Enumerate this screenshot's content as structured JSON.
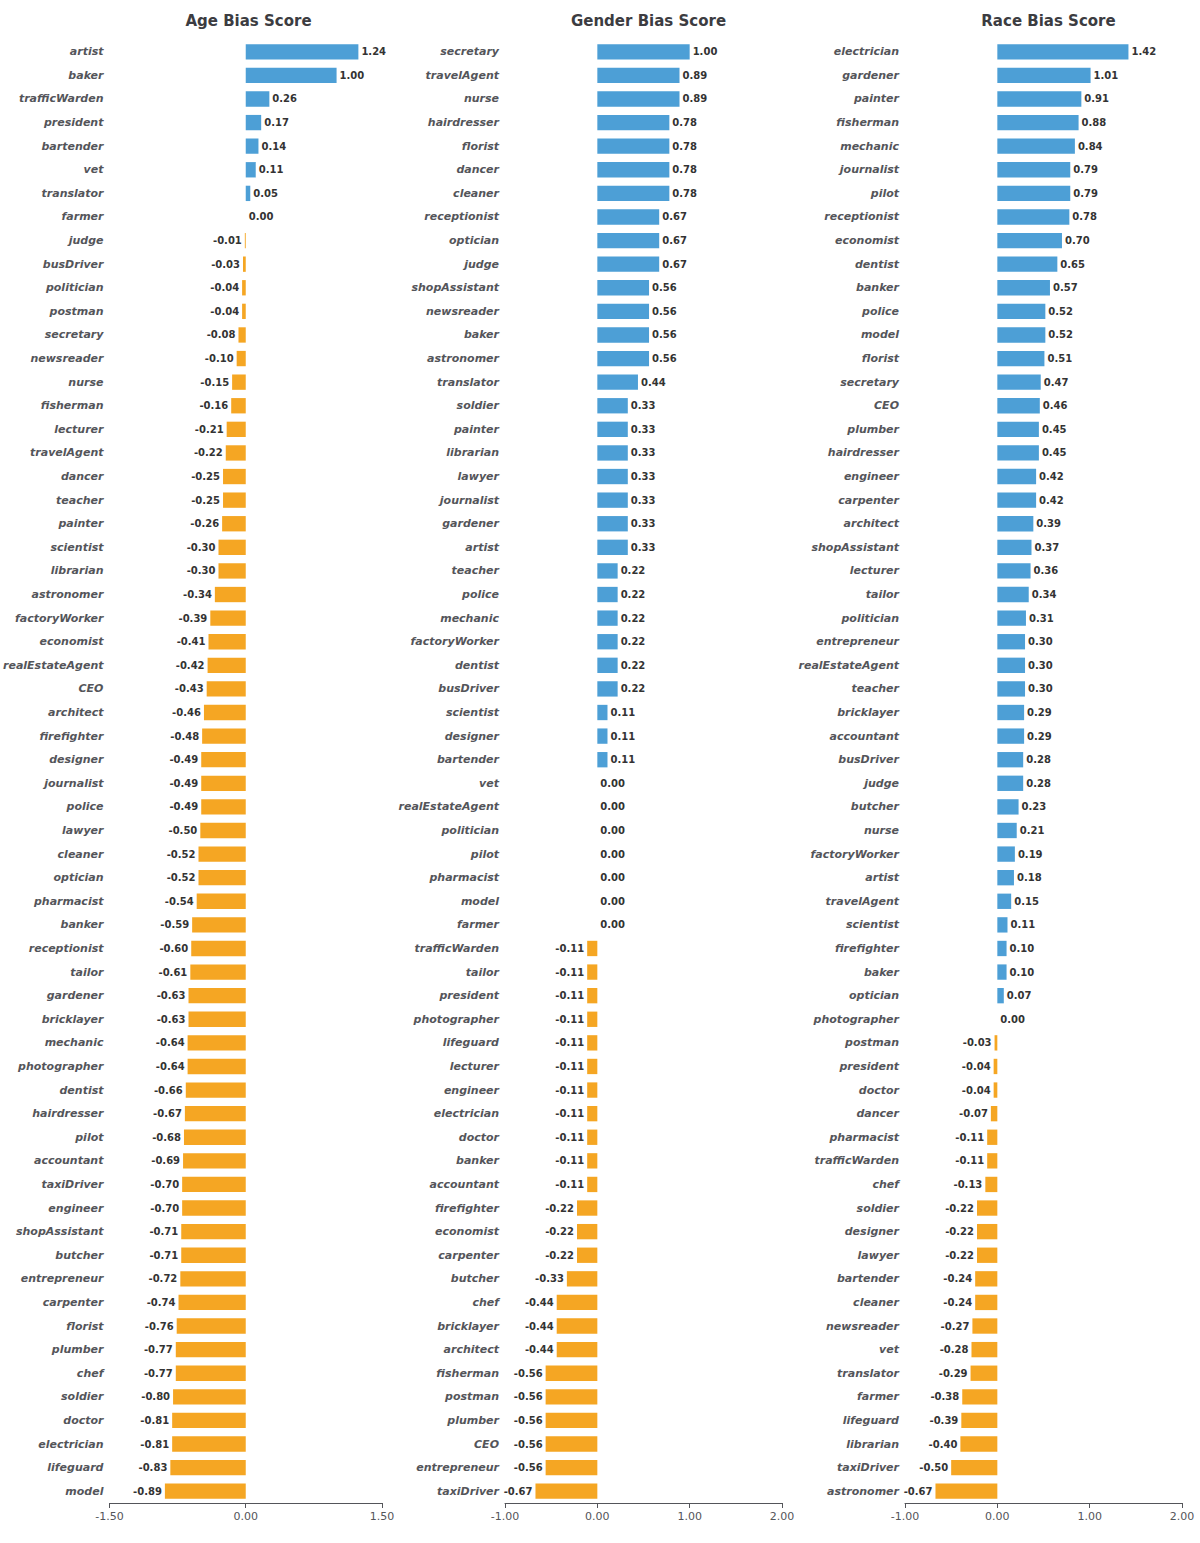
{
  "chart_data": [
    {
      "type": "bar",
      "orientation": "horizontal",
      "title": "Age Bias Score",
      "grid": false,
      "data_labels": true,
      "categories": [
        "artist",
        "baker",
        "trafficWarden",
        "president",
        "bartender",
        "vet",
        "translator",
        "farmer",
        "judge",
        "busDriver",
        "politician",
        "postman",
        "secretary",
        "newsreader",
        "nurse",
        "fisherman",
        "lecturer",
        "travelAgent",
        "dancer",
        "teacher",
        "painter",
        "scientist",
        "librarian",
        "astronomer",
        "factoryWorker",
        "economist",
        "realEstateAgent",
        "CEO",
        "architect",
        "firefighter",
        "designer",
        "journalist",
        "police",
        "lawyer",
        "cleaner",
        "optician",
        "pharmacist",
        "banker",
        "receptionist",
        "tailor",
        "gardener",
        "bricklayer",
        "mechanic",
        "photographer",
        "dentist",
        "hairdresser",
        "pilot",
        "accountant",
        "taxiDriver",
        "engineer",
        "shopAssistant",
        "butcher",
        "entrepreneur",
        "carpenter",
        "florist",
        "plumber",
        "chef",
        "soldier",
        "doctor",
        "electrician",
        "lifeguard",
        "model"
      ],
      "values": [
        1.24,
        1.0,
        0.26,
        0.17,
        0.14,
        0.11,
        0.05,
        0.0,
        -0.01,
        -0.03,
        -0.04,
        -0.04,
        -0.08,
        -0.1,
        -0.15,
        -0.16,
        -0.21,
        -0.22,
        -0.25,
        -0.25,
        -0.26,
        -0.3,
        -0.3,
        -0.34,
        -0.39,
        -0.41,
        -0.42,
        -0.43,
        -0.46,
        -0.48,
        -0.49,
        -0.49,
        -0.49,
        -0.5,
        -0.52,
        -0.52,
        -0.54,
        -0.59,
        -0.6,
        -0.61,
        -0.63,
        -0.63,
        -0.64,
        -0.64,
        -0.66,
        -0.67,
        -0.68,
        -0.69,
        -0.7,
        -0.7,
        -0.71,
        -0.71,
        -0.72,
        -0.74,
        -0.76,
        -0.77,
        -0.77,
        -0.8,
        -0.81,
        -0.81,
        -0.83,
        -0.89
      ],
      "value_labels": [
        "1.24",
        "1.00",
        "0.26",
        "0.17",
        "0.14",
        "0.11",
        "0.05",
        "0.00",
        "-0.01",
        "-0.03",
        "-0.04",
        "-0.04",
        "-0.08",
        "-0.10",
        "-0.15",
        "-0.16",
        "-0.21",
        "-0.22",
        "-0.25",
        "-0.25",
        "-0.26",
        "-0.30",
        "-0.30",
        "-0.34",
        "-0.39",
        "-0.41",
        "-0.42",
        "-0.43",
        "-0.46",
        "-0.48",
        "-0.49",
        "-0.49",
        "-0.49",
        "-0.50",
        "-0.52",
        "-0.52",
        "-0.54",
        "-0.59",
        "-0.60",
        "-0.61",
        "-0.63",
        "-0.63",
        "-0.64",
        "-0.64",
        "-0.66",
        "-0.67",
        "-0.68",
        "-0.69",
        "-0.70",
        "-0.70",
        "-0.71",
        "-0.71",
        "-0.72",
        "-0.74",
        "-0.76",
        "-0.77",
        "-0.77",
        "-0.80",
        "-0.81",
        "-0.81",
        "-0.83",
        "-0.89"
      ],
      "colors": [
        "#4D9FD6",
        "#4D9FD6",
        "#4D9FD6",
        "#4D9FD6",
        "#4D9FD6",
        "#4D9FD6",
        "#4D9FD6",
        "#4D9FD6",
        "#F5A623",
        "#F5A623",
        "#F5A623",
        "#F5A623",
        "#F5A623",
        "#F5A623",
        "#F5A623",
        "#F5A623",
        "#F5A623",
        "#F5A623",
        "#F5A623",
        "#F5A623",
        "#F5A623",
        "#F5A623",
        "#F5A623",
        "#F5A623",
        "#F5A623",
        "#F5A623",
        "#F5A623",
        "#F5A623",
        "#F5A623",
        "#F5A623",
        "#F5A623",
        "#F5A623",
        "#F5A623",
        "#F5A623",
        "#F5A623",
        "#F5A623",
        "#F5A623",
        "#F5A623",
        "#F5A623",
        "#F5A623",
        "#F5A623",
        "#F5A623",
        "#F5A623",
        "#F5A623",
        "#F5A623",
        "#F5A623",
        "#F5A623",
        "#F5A623",
        "#F5A623",
        "#F5A623",
        "#F5A623",
        "#F5A623",
        "#F5A623",
        "#F5A623",
        "#F5A623",
        "#F5A623",
        "#F5A623",
        "#F5A623",
        "#F5A623",
        "#F5A623",
        "#F5A623",
        "#F5A623"
      ],
      "xlim": [
        -1.5,
        1.5
      ],
      "xticks": [
        {
          "value": -1.5,
          "label": "-1.50"
        },
        {
          "value": 0.0,
          "label": "0.00"
        },
        {
          "value": 1.5,
          "label": "1.50"
        }
      ]
    },
    {
      "type": "bar",
      "orientation": "horizontal",
      "title": "Gender Bias Score",
      "grid": false,
      "data_labels": true,
      "categories": [
        "secretary",
        "travelAgent",
        "nurse",
        "hairdresser",
        "florist",
        "dancer",
        "cleaner",
        "receptionist",
        "optician",
        "judge",
        "shopAssistant",
        "newsreader",
        "baker",
        "astronomer",
        "translator",
        "soldier",
        "painter",
        "librarian",
        "lawyer",
        "journalist",
        "gardener",
        "artist",
        "teacher",
        "police",
        "mechanic",
        "factoryWorker",
        "dentist",
        "busDriver",
        "scientist",
        "designer",
        "bartender",
        "vet",
        "realEstateAgent",
        "politician",
        "pilot",
        "pharmacist",
        "model",
        "farmer",
        "trafficWarden",
        "tailor",
        "president",
        "photographer",
        "lifeguard",
        "lecturer",
        "engineer",
        "electrician",
        "doctor",
        "banker",
        "accountant",
        "firefighter",
        "economist",
        "carpenter",
        "butcher",
        "chef",
        "bricklayer",
        "architect",
        "fisherman",
        "postman",
        "plumber",
        "CEO",
        "entrepreneur",
        "taxiDriver"
      ],
      "values": [
        1.0,
        0.89,
        0.89,
        0.78,
        0.78,
        0.78,
        0.78,
        0.67,
        0.67,
        0.67,
        0.56,
        0.56,
        0.56,
        0.56,
        0.44,
        0.33,
        0.33,
        0.33,
        0.33,
        0.33,
        0.33,
        0.33,
        0.22,
        0.22,
        0.22,
        0.22,
        0.22,
        0.22,
        0.11,
        0.11,
        0.11,
        0.0,
        0.0,
        0.0,
        0.0,
        0.0,
        0.0,
        0.0,
        -0.11,
        -0.11,
        -0.11,
        -0.11,
        -0.11,
        -0.11,
        -0.11,
        -0.11,
        -0.11,
        -0.11,
        -0.11,
        -0.22,
        -0.22,
        -0.22,
        -0.33,
        -0.44,
        -0.44,
        -0.44,
        -0.56,
        -0.56,
        -0.56,
        -0.56,
        -0.56,
        -0.67
      ],
      "value_labels": [
        "1.00",
        "0.89",
        "0.89",
        "0.78",
        "0.78",
        "0.78",
        "0.78",
        "0.67",
        "0.67",
        "0.67",
        "0.56",
        "0.56",
        "0.56",
        "0.56",
        "0.44",
        "0.33",
        "0.33",
        "0.33",
        "0.33",
        "0.33",
        "0.33",
        "0.33",
        "0.22",
        "0.22",
        "0.22",
        "0.22",
        "0.22",
        "0.22",
        "0.11",
        "0.11",
        "0.11",
        "0.00",
        "0.00",
        "0.00",
        "0.00",
        "0.00",
        "0.00",
        "0.00",
        "-0.11",
        "-0.11",
        "-0.11",
        "-0.11",
        "-0.11",
        "-0.11",
        "-0.11",
        "-0.11",
        "-0.11",
        "-0.11",
        "-0.11",
        "-0.22",
        "-0.22",
        "-0.22",
        "-0.33",
        "-0.44",
        "-0.44",
        "-0.44",
        "-0.56",
        "-0.56",
        "-0.56",
        "-0.56",
        "-0.56",
        "-0.67"
      ],
      "colors": [
        "#4D9FD6",
        "#4D9FD6",
        "#4D9FD6",
        "#4D9FD6",
        "#4D9FD6",
        "#4D9FD6",
        "#4D9FD6",
        "#4D9FD6",
        "#4D9FD6",
        "#4D9FD6",
        "#4D9FD6",
        "#4D9FD6",
        "#4D9FD6",
        "#4D9FD6",
        "#4D9FD6",
        "#4D9FD6",
        "#4D9FD6",
        "#4D9FD6",
        "#4D9FD6",
        "#4D9FD6",
        "#4D9FD6",
        "#4D9FD6",
        "#4D9FD6",
        "#4D9FD6",
        "#4D9FD6",
        "#4D9FD6",
        "#4D9FD6",
        "#4D9FD6",
        "#4D9FD6",
        "#4D9FD6",
        "#4D9FD6",
        "#4D9FD6",
        "#4D9FD6",
        "#4D9FD6",
        "#4D9FD6",
        "#4D9FD6",
        "#4D9FD6",
        "#4D9FD6",
        "#F5A623",
        "#F5A623",
        "#F5A623",
        "#F5A623",
        "#F5A623",
        "#F5A623",
        "#F5A623",
        "#F5A623",
        "#F5A623",
        "#F5A623",
        "#F5A623",
        "#F5A623",
        "#F5A623",
        "#F5A623",
        "#F5A623",
        "#F5A623",
        "#F5A623",
        "#F5A623",
        "#F5A623",
        "#F5A623",
        "#F5A623",
        "#F5A623",
        "#F5A623",
        "#F5A623"
      ],
      "xlim": [
        -1.0,
        2.0
      ],
      "xticks": [
        {
          "value": -1.0,
          "label": "-1.00"
        },
        {
          "value": 0.0,
          "label": "0.00"
        },
        {
          "value": 1.0,
          "label": "1.00"
        },
        {
          "value": 2.0,
          "label": "2.00"
        }
      ]
    },
    {
      "type": "bar",
      "orientation": "horizontal",
      "title": "Race Bias Score",
      "grid": false,
      "data_labels": true,
      "categories": [
        "electrician",
        "gardener",
        "painter",
        "fisherman",
        "mechanic",
        "journalist",
        "pilot",
        "receptionist",
        "economist",
        "dentist",
        "banker",
        "police",
        "model",
        "florist",
        "secretary",
        "CEO",
        "plumber",
        "hairdresser",
        "engineer",
        "carpenter",
        "architect",
        "shopAssistant",
        "lecturer",
        "tailor",
        "politician",
        "entrepreneur",
        "realEstateAgent",
        "teacher",
        "bricklayer",
        "accountant",
        "busDriver",
        "judge",
        "butcher",
        "nurse",
        "factoryWorker",
        "artist",
        "travelAgent",
        "scientist",
        "firefighter",
        "baker",
        "optician",
        "photographer",
        "postman",
        "president",
        "doctor",
        "dancer",
        "pharmacist",
        "trafficWarden",
        "chef",
        "soldier",
        "designer",
        "lawyer",
        "bartender",
        "cleaner",
        "newsreader",
        "vet",
        "translator",
        "farmer",
        "lifeguard",
        "librarian",
        "taxiDriver",
        "astronomer"
      ],
      "values": [
        1.42,
        1.01,
        0.91,
        0.88,
        0.84,
        0.79,
        0.79,
        0.78,
        0.7,
        0.65,
        0.57,
        0.52,
        0.52,
        0.51,
        0.47,
        0.46,
        0.45,
        0.45,
        0.42,
        0.42,
        0.39,
        0.37,
        0.36,
        0.34,
        0.31,
        0.3,
        0.3,
        0.3,
        0.29,
        0.29,
        0.28,
        0.28,
        0.23,
        0.21,
        0.19,
        0.18,
        0.15,
        0.11,
        0.1,
        0.1,
        0.07,
        0.0,
        -0.03,
        -0.04,
        -0.04,
        -0.07,
        -0.11,
        -0.11,
        -0.13,
        -0.22,
        -0.22,
        -0.22,
        -0.24,
        -0.24,
        -0.27,
        -0.28,
        -0.29,
        -0.38,
        -0.39,
        -0.4,
        -0.5,
        -0.67
      ],
      "value_labels": [
        "1.42",
        "1.01",
        "0.91",
        "0.88",
        "0.84",
        "0.79",
        "0.79",
        "0.78",
        "0.70",
        "0.65",
        "0.57",
        "0.52",
        "0.52",
        "0.51",
        "0.47",
        "0.46",
        "0.45",
        "0.45",
        "0.42",
        "0.42",
        "0.39",
        "0.37",
        "0.36",
        "0.34",
        "0.31",
        "0.30",
        "0.30",
        "0.30",
        "0.29",
        "0.29",
        "0.28",
        "0.28",
        "0.23",
        "0.21",
        "0.19",
        "0.18",
        "0.15",
        "0.11",
        "0.10",
        "0.10",
        "0.07",
        "0.00",
        "-0.03",
        "-0.04",
        "-0.04",
        "-0.07",
        "-0.11",
        "-0.11",
        "-0.13",
        "-0.22",
        "-0.22",
        "-0.22",
        "-0.24",
        "-0.24",
        "-0.27",
        "-0.28",
        "-0.29",
        "-0.38",
        "-0.39",
        "-0.40",
        "-0.50",
        "-0.67"
      ],
      "colors": [
        "#4D9FD6",
        "#4D9FD6",
        "#4D9FD6",
        "#4D9FD6",
        "#4D9FD6",
        "#4D9FD6",
        "#4D9FD6",
        "#4D9FD6",
        "#4D9FD6",
        "#4D9FD6",
        "#4D9FD6",
        "#4D9FD6",
        "#4D9FD6",
        "#4D9FD6",
        "#4D9FD6",
        "#4D9FD6",
        "#4D9FD6",
        "#4D9FD6",
        "#4D9FD6",
        "#4D9FD6",
        "#4D9FD6",
        "#4D9FD6",
        "#4D9FD6",
        "#4D9FD6",
        "#4D9FD6",
        "#4D9FD6",
        "#4D9FD6",
        "#4D9FD6",
        "#4D9FD6",
        "#4D9FD6",
        "#4D9FD6",
        "#4D9FD6",
        "#4D9FD6",
        "#4D9FD6",
        "#4D9FD6",
        "#4D9FD6",
        "#4D9FD6",
        "#4D9FD6",
        "#4D9FD6",
        "#4D9FD6",
        "#4D9FD6",
        "#4D9FD6",
        "#F5A623",
        "#F5A623",
        "#F5A623",
        "#F5A623",
        "#F5A623",
        "#F5A623",
        "#F5A623",
        "#F5A623",
        "#F5A623",
        "#F5A623",
        "#F5A623",
        "#F5A623",
        "#F5A623",
        "#F5A623",
        "#F5A623",
        "#F5A623",
        "#F5A623",
        "#F5A623",
        "#F5A623",
        "#F5A623"
      ],
      "xlim": [
        -1.0,
        2.0
      ],
      "xticks": [
        {
          "value": -1.0,
          "label": "-1.00"
        },
        {
          "value": 0.0,
          "label": "0.00"
        },
        {
          "value": 1.0,
          "label": "1.00"
        },
        {
          "value": 2.0,
          "label": "2.00"
        }
      ]
    }
  ]
}
